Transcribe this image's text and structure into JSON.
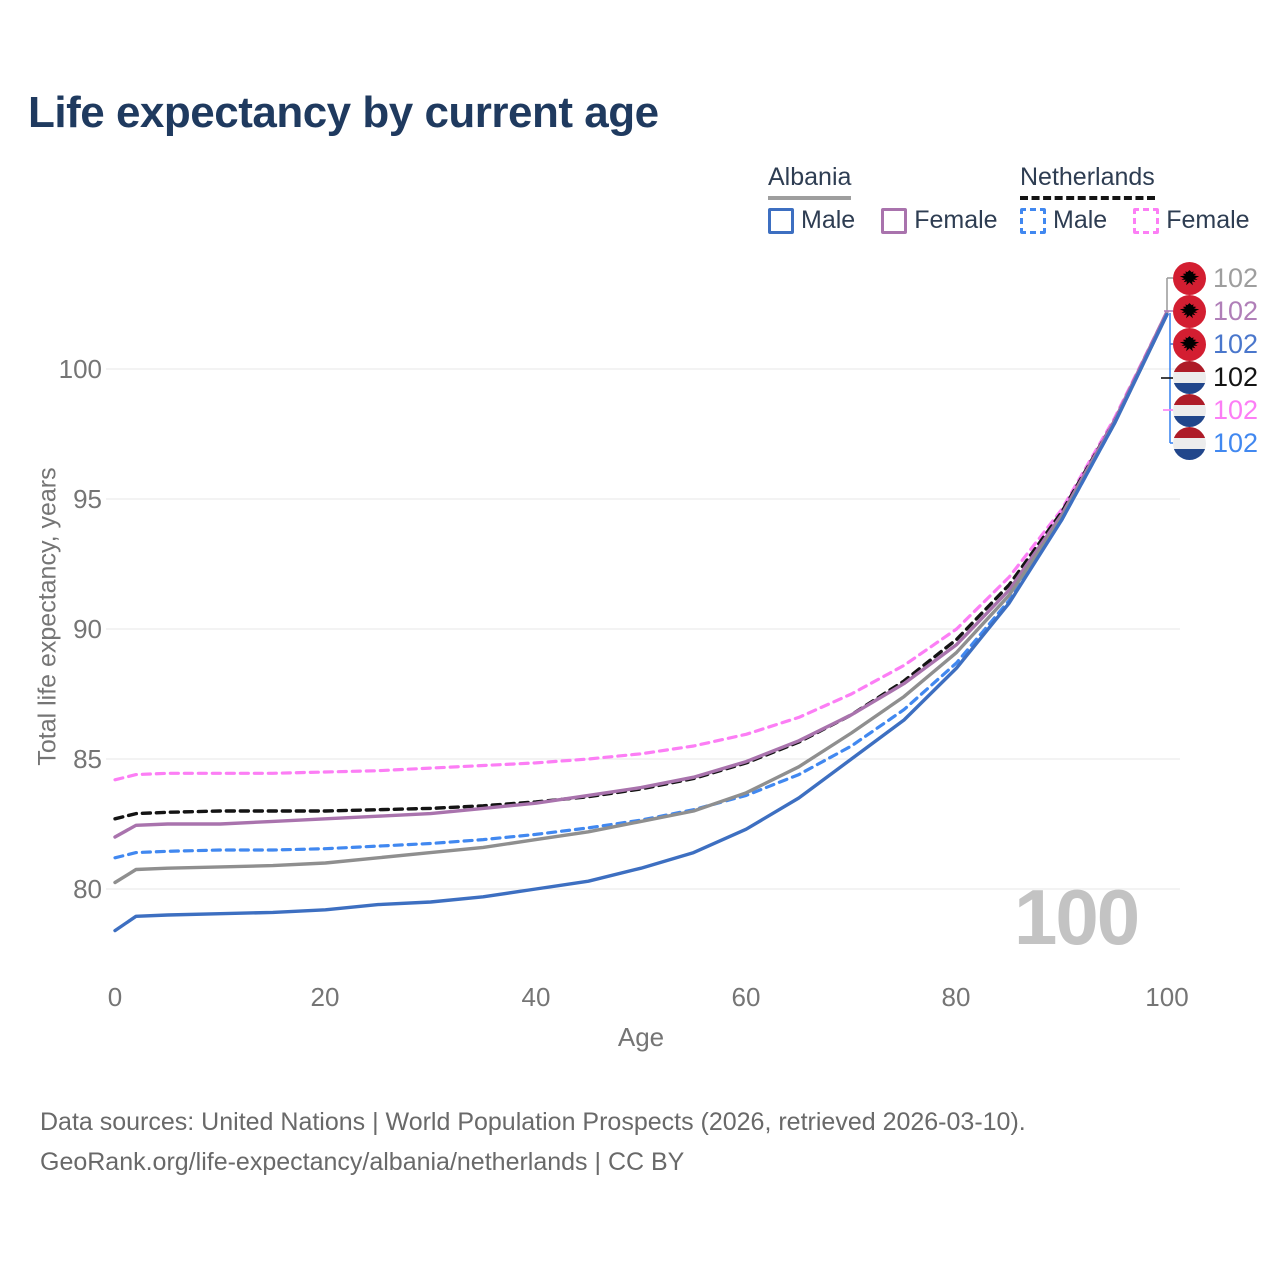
{
  "title": "Life expectancy by current age",
  "legend": {
    "groups": [
      {
        "label": "Albania",
        "line_style": "solid",
        "line_color": "#9e9e9e",
        "items": [
          {
            "label": "Male",
            "color": "#3d6fc1",
            "dash": false
          },
          {
            "label": "Female",
            "color": "#a973ad",
            "dash": false
          }
        ]
      },
      {
        "label": "Netherlands",
        "line_style": "dashed",
        "line_color": "#141414",
        "items": [
          {
            "label": "Male",
            "color": "#4188f0",
            "dash": true
          },
          {
            "label": "Female",
            "color": "#fc7ef5",
            "dash": true
          }
        ]
      }
    ]
  },
  "chart_data": {
    "type": "line",
    "title": "Life expectancy by current age",
    "xlabel": "Age",
    "ylabel": "Total life expectancy, years",
    "xlim": [
      0,
      100
    ],
    "ylim": [
      77.5,
      103
    ],
    "x_ticks": [
      0,
      20,
      40,
      60,
      80,
      100
    ],
    "y_ticks": [
      100,
      95,
      90,
      85,
      80
    ],
    "grid": "horizontal",
    "legend_position": "top-right",
    "x": [
      0,
      2,
      5,
      10,
      15,
      20,
      25,
      30,
      35,
      40,
      45,
      50,
      55,
      60,
      65,
      70,
      75,
      80,
      85,
      90,
      95,
      100
    ],
    "series": [
      {
        "name": "Netherlands Female",
        "country": "netherlands",
        "sex": "female",
        "color": "#fc7ef5",
        "dash": true,
        "values": [
          84.2,
          84.4,
          84.45,
          84.45,
          84.45,
          84.5,
          84.55,
          84.65,
          84.75,
          84.85,
          85.0,
          85.2,
          85.5,
          85.95,
          86.6,
          87.5,
          88.6,
          90.0,
          92.0,
          94.6,
          98.1,
          102.2
        ]
      },
      {
        "name": "Netherlands",
        "country": "netherlands",
        "sex": "both",
        "color": "#141414",
        "dash": true,
        "values": [
          82.7,
          82.9,
          82.95,
          83.0,
          83.0,
          83.0,
          83.05,
          83.1,
          83.2,
          83.35,
          83.55,
          83.85,
          84.25,
          84.85,
          85.65,
          86.7,
          88.0,
          89.6,
          91.7,
          94.5,
          98.0,
          102.15
        ]
      },
      {
        "name": "Albania Female",
        "country": "albania",
        "sex": "female",
        "color": "#a973ad",
        "dash": false,
        "values": [
          82.0,
          82.45,
          82.5,
          82.5,
          82.6,
          82.7,
          82.8,
          82.9,
          83.1,
          83.3,
          83.6,
          83.9,
          84.3,
          84.9,
          85.7,
          86.7,
          87.9,
          89.4,
          91.5,
          94.4,
          98.0,
          102.2
        ]
      },
      {
        "name": "Netherlands Male",
        "country": "netherlands",
        "sex": "male",
        "color": "#4188f0",
        "dash": true,
        "values": [
          81.2,
          81.4,
          81.45,
          81.5,
          81.5,
          81.55,
          81.65,
          81.75,
          81.9,
          82.1,
          82.35,
          82.65,
          83.05,
          83.6,
          84.4,
          85.5,
          86.9,
          88.7,
          91.1,
          94.2,
          97.9,
          102.1
        ]
      },
      {
        "name": "Albania",
        "country": "albania",
        "sex": "both",
        "color": "#8f8f8f",
        "dash": false,
        "values": [
          80.25,
          80.75,
          80.8,
          80.85,
          80.9,
          81.0,
          81.2,
          81.4,
          81.6,
          81.9,
          82.2,
          82.6,
          83.0,
          83.7,
          84.7,
          86.0,
          87.4,
          89.1,
          91.3,
          94.3,
          97.9,
          102.1
        ]
      },
      {
        "name": "Albania Male",
        "country": "albania",
        "sex": "male",
        "color": "#3d6fc1",
        "dash": false,
        "values": [
          78.4,
          78.95,
          79.0,
          79.05,
          79.1,
          79.2,
          79.4,
          79.5,
          79.7,
          80.0,
          80.3,
          80.8,
          81.4,
          82.3,
          83.5,
          85.0,
          86.5,
          88.5,
          91.0,
          94.2,
          97.9,
          102.1
        ]
      }
    ],
    "end_labels": [
      {
        "flag": "albania",
        "value": "102",
        "color": "#9e9e9e"
      },
      {
        "flag": "albania",
        "value": "102",
        "color": "#b07fb8"
      },
      {
        "flag": "albania",
        "value": "102",
        "color": "#4a77cc"
      },
      {
        "flag": "netherlands",
        "value": "102",
        "color": "#141414"
      },
      {
        "flag": "netherlands",
        "value": "102",
        "color": "#fc7ef5"
      },
      {
        "flag": "netherlands",
        "value": "102",
        "color": "#4188f0"
      }
    ],
    "watermark": "100"
  },
  "source": {
    "line1": "Data sources: United Nations | World Population Prospects (2026, retrieved 2026-03-10).",
    "line2": "GeoRank.org/life-expectancy/albania/netherlands | CC BY"
  }
}
